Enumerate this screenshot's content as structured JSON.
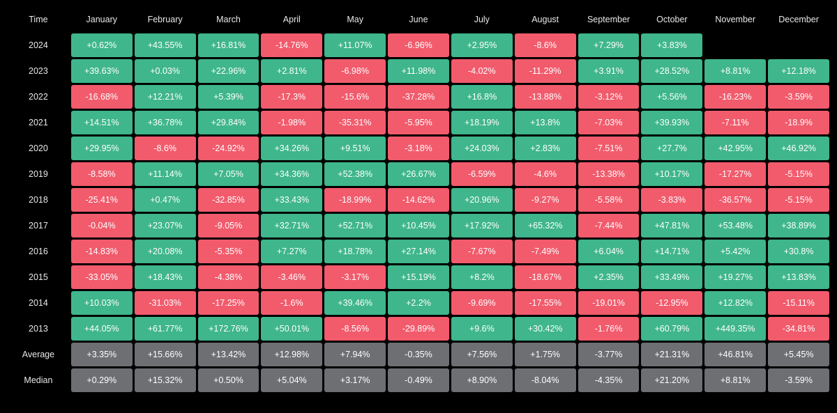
{
  "type": "heatmap-table",
  "background_color": "#000000",
  "colors": {
    "positive": "#3fb68b",
    "negative": "#f15b6c",
    "summary": "#6d6f73",
    "header_text": "#e8e8e8",
    "cell_text": "#ffffff"
  },
  "cell_border_radius": 3,
  "cell_spacing": 3,
  "font_size": 12.5,
  "columns": [
    "Time",
    "January",
    "February",
    "March",
    "April",
    "May",
    "June",
    "July",
    "August",
    "September",
    "October",
    "November",
    "December"
  ],
  "rows": [
    {
      "label": "2024",
      "cells": [
        {
          "v": "+0.62%",
          "s": 1
        },
        {
          "v": "+43.55%",
          "s": 1
        },
        {
          "v": "+16.81%",
          "s": 1
        },
        {
          "v": "-14.76%",
          "s": -1
        },
        {
          "v": "+11.07%",
          "s": 1
        },
        {
          "v": "-6.96%",
          "s": -1
        },
        {
          "v": "+2.95%",
          "s": 1
        },
        {
          "v": "-8.6%",
          "s": -1
        },
        {
          "v": "+7.29%",
          "s": 1
        },
        {
          "v": "+3.83%",
          "s": 1
        },
        {
          "v": "",
          "s": 0
        },
        {
          "v": "",
          "s": 0
        }
      ]
    },
    {
      "label": "2023",
      "cells": [
        {
          "v": "+39.63%",
          "s": 1
        },
        {
          "v": "+0.03%",
          "s": 1
        },
        {
          "v": "+22.96%",
          "s": 1
        },
        {
          "v": "+2.81%",
          "s": 1
        },
        {
          "v": "-6.98%",
          "s": -1
        },
        {
          "v": "+11.98%",
          "s": 1
        },
        {
          "v": "-4.02%",
          "s": -1
        },
        {
          "v": "-11.29%",
          "s": -1
        },
        {
          "v": "+3.91%",
          "s": 1
        },
        {
          "v": "+28.52%",
          "s": 1
        },
        {
          "v": "+8.81%",
          "s": 1
        },
        {
          "v": "+12.18%",
          "s": 1
        }
      ]
    },
    {
      "label": "2022",
      "cells": [
        {
          "v": "-16.68%",
          "s": -1
        },
        {
          "v": "+12.21%",
          "s": 1
        },
        {
          "v": "+5.39%",
          "s": 1
        },
        {
          "v": "-17.3%",
          "s": -1
        },
        {
          "v": "-15.6%",
          "s": -1
        },
        {
          "v": "-37.28%",
          "s": -1
        },
        {
          "v": "+16.8%",
          "s": 1
        },
        {
          "v": "-13.88%",
          "s": -1
        },
        {
          "v": "-3.12%",
          "s": -1
        },
        {
          "v": "+5.56%",
          "s": 1
        },
        {
          "v": "-16.23%",
          "s": -1
        },
        {
          "v": "-3.59%",
          "s": -1
        }
      ]
    },
    {
      "label": "2021",
      "cells": [
        {
          "v": "+14.51%",
          "s": 1
        },
        {
          "v": "+36.78%",
          "s": 1
        },
        {
          "v": "+29.84%",
          "s": 1
        },
        {
          "v": "-1.98%",
          "s": -1
        },
        {
          "v": "-35.31%",
          "s": -1
        },
        {
          "v": "-5.95%",
          "s": -1
        },
        {
          "v": "+18.19%",
          "s": 1
        },
        {
          "v": "+13.8%",
          "s": 1
        },
        {
          "v": "-7.03%",
          "s": -1
        },
        {
          "v": "+39.93%",
          "s": 1
        },
        {
          "v": "-7.11%",
          "s": -1
        },
        {
          "v": "-18.9%",
          "s": -1
        }
      ]
    },
    {
      "label": "2020",
      "cells": [
        {
          "v": "+29.95%",
          "s": 1
        },
        {
          "v": "-8.6%",
          "s": -1
        },
        {
          "v": "-24.92%",
          "s": -1
        },
        {
          "v": "+34.26%",
          "s": 1
        },
        {
          "v": "+9.51%",
          "s": 1
        },
        {
          "v": "-3.18%",
          "s": -1
        },
        {
          "v": "+24.03%",
          "s": 1
        },
        {
          "v": "+2.83%",
          "s": 1
        },
        {
          "v": "-7.51%",
          "s": -1
        },
        {
          "v": "+27.7%",
          "s": 1
        },
        {
          "v": "+42.95%",
          "s": 1
        },
        {
          "v": "+46.92%",
          "s": 1
        }
      ]
    },
    {
      "label": "2019",
      "cells": [
        {
          "v": "-8.58%",
          "s": -1
        },
        {
          "v": "+11.14%",
          "s": 1
        },
        {
          "v": "+7.05%",
          "s": 1
        },
        {
          "v": "+34.36%",
          "s": 1
        },
        {
          "v": "+52.38%",
          "s": 1
        },
        {
          "v": "+26.67%",
          "s": 1
        },
        {
          "v": "-6.59%",
          "s": -1
        },
        {
          "v": "-4.6%",
          "s": -1
        },
        {
          "v": "-13.38%",
          "s": -1
        },
        {
          "v": "+10.17%",
          "s": 1
        },
        {
          "v": "-17.27%",
          "s": -1
        },
        {
          "v": "-5.15%",
          "s": -1
        }
      ]
    },
    {
      "label": "2018",
      "cells": [
        {
          "v": "-25.41%",
          "s": -1
        },
        {
          "v": "+0.47%",
          "s": 1
        },
        {
          "v": "-32.85%",
          "s": -1
        },
        {
          "v": "+33.43%",
          "s": 1
        },
        {
          "v": "-18.99%",
          "s": -1
        },
        {
          "v": "-14.62%",
          "s": -1
        },
        {
          "v": "+20.96%",
          "s": 1
        },
        {
          "v": "-9.27%",
          "s": -1
        },
        {
          "v": "-5.58%",
          "s": -1
        },
        {
          "v": "-3.83%",
          "s": -1
        },
        {
          "v": "-36.57%",
          "s": -1
        },
        {
          "v": "-5.15%",
          "s": -1
        }
      ]
    },
    {
      "label": "2017",
      "cells": [
        {
          "v": "-0.04%",
          "s": -1
        },
        {
          "v": "+23.07%",
          "s": 1
        },
        {
          "v": "-9.05%",
          "s": -1
        },
        {
          "v": "+32.71%",
          "s": 1
        },
        {
          "v": "+52.71%",
          "s": 1
        },
        {
          "v": "+10.45%",
          "s": 1
        },
        {
          "v": "+17.92%",
          "s": 1
        },
        {
          "v": "+65.32%",
          "s": 1
        },
        {
          "v": "-7.44%",
          "s": -1
        },
        {
          "v": "+47.81%",
          "s": 1
        },
        {
          "v": "+53.48%",
          "s": 1
        },
        {
          "v": "+38.89%",
          "s": 1
        }
      ]
    },
    {
      "label": "2016",
      "cells": [
        {
          "v": "-14.83%",
          "s": -1
        },
        {
          "v": "+20.08%",
          "s": 1
        },
        {
          "v": "-5.35%",
          "s": -1
        },
        {
          "v": "+7.27%",
          "s": 1
        },
        {
          "v": "+18.78%",
          "s": 1
        },
        {
          "v": "+27.14%",
          "s": 1
        },
        {
          "v": "-7.67%",
          "s": -1
        },
        {
          "v": "-7.49%",
          "s": -1
        },
        {
          "v": "+6.04%",
          "s": 1
        },
        {
          "v": "+14.71%",
          "s": 1
        },
        {
          "v": "+5.42%",
          "s": 1
        },
        {
          "v": "+30.8%",
          "s": 1
        }
      ]
    },
    {
      "label": "2015",
      "cells": [
        {
          "v": "-33.05%",
          "s": -1
        },
        {
          "v": "+18.43%",
          "s": 1
        },
        {
          "v": "-4.38%",
          "s": -1
        },
        {
          "v": "-3.46%",
          "s": -1
        },
        {
          "v": "-3.17%",
          "s": -1
        },
        {
          "v": "+15.19%",
          "s": 1
        },
        {
          "v": "+8.2%",
          "s": 1
        },
        {
          "v": "-18.67%",
          "s": -1
        },
        {
          "v": "+2.35%",
          "s": 1
        },
        {
          "v": "+33.49%",
          "s": 1
        },
        {
          "v": "+19.27%",
          "s": 1
        },
        {
          "v": "+13.83%",
          "s": 1
        }
      ]
    },
    {
      "label": "2014",
      "cells": [
        {
          "v": "+10.03%",
          "s": 1
        },
        {
          "v": "-31.03%",
          "s": -1
        },
        {
          "v": "-17.25%",
          "s": -1
        },
        {
          "v": "-1.6%",
          "s": -1
        },
        {
          "v": "+39.46%",
          "s": 1
        },
        {
          "v": "+2.2%",
          "s": 1
        },
        {
          "v": "-9.69%",
          "s": -1
        },
        {
          "v": "-17.55%",
          "s": -1
        },
        {
          "v": "-19.01%",
          "s": -1
        },
        {
          "v": "-12.95%",
          "s": -1
        },
        {
          "v": "+12.82%",
          "s": 1
        },
        {
          "v": "-15.11%",
          "s": -1
        }
      ]
    },
    {
      "label": "2013",
      "cells": [
        {
          "v": "+44.05%",
          "s": 1
        },
        {
          "v": "+61.77%",
          "s": 1
        },
        {
          "v": "+172.76%",
          "s": 1
        },
        {
          "v": "+50.01%",
          "s": 1
        },
        {
          "v": "-8.56%",
          "s": -1
        },
        {
          "v": "-29.89%",
          "s": -1
        },
        {
          "v": "+9.6%",
          "s": 1
        },
        {
          "v": "+30.42%",
          "s": 1
        },
        {
          "v": "-1.76%",
          "s": -1
        },
        {
          "v": "+60.79%",
          "s": 1
        },
        {
          "v": "+449.35%",
          "s": 1
        },
        {
          "v": "-34.81%",
          "s": -1
        }
      ]
    },
    {
      "label": "Average",
      "summary": true,
      "cells": [
        {
          "v": "+3.35%",
          "s": 2
        },
        {
          "v": "+15.66%",
          "s": 2
        },
        {
          "v": "+13.42%",
          "s": 2
        },
        {
          "v": "+12.98%",
          "s": 2
        },
        {
          "v": "+7.94%",
          "s": 2
        },
        {
          "v": "-0.35%",
          "s": 2
        },
        {
          "v": "+7.56%",
          "s": 2
        },
        {
          "v": "+1.75%",
          "s": 2
        },
        {
          "v": "-3.77%",
          "s": 2
        },
        {
          "v": "+21.31%",
          "s": 2
        },
        {
          "v": "+46.81%",
          "s": 2
        },
        {
          "v": "+5.45%",
          "s": 2
        }
      ]
    },
    {
      "label": "Median",
      "summary": true,
      "cells": [
        {
          "v": "+0.29%",
          "s": 2
        },
        {
          "v": "+15.32%",
          "s": 2
        },
        {
          "v": "+0.50%",
          "s": 2
        },
        {
          "v": "+5.04%",
          "s": 2
        },
        {
          "v": "+3.17%",
          "s": 2
        },
        {
          "v": "-0.49%",
          "s": 2
        },
        {
          "v": "+8.90%",
          "s": 2
        },
        {
          "v": "-8.04%",
          "s": 2
        },
        {
          "v": "-4.35%",
          "s": 2
        },
        {
          "v": "+21.20%",
          "s": 2
        },
        {
          "v": "+8.81%",
          "s": 2
        },
        {
          "v": "-3.59%",
          "s": 2
        }
      ]
    }
  ]
}
